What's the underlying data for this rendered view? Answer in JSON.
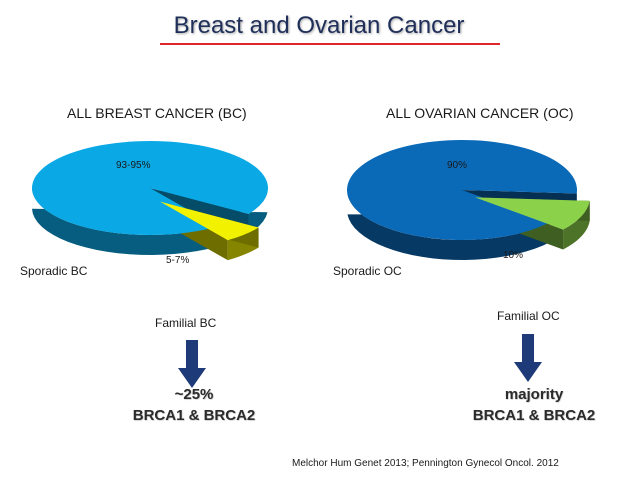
{
  "slide": {
    "title": "Breast and Ovarian Cancer",
    "citation": "Melchor Hum Genet 2013; Pennington Gynecol Oncol. 2012"
  },
  "colors": {
    "title_underline": "#e0262b",
    "bc_sporadic": "#0aa9e6",
    "bc_familial": "#f2f200",
    "oc_sporadic": "#0a6ab8",
    "oc_familial": "#8cd14a",
    "arrow": "#1f3a78"
  },
  "chart_data": [
    {
      "type": "pie",
      "title": "ALL BREAST CANCER (BC)",
      "slices": [
        {
          "name": "Sporadic BC",
          "label": "93-95%",
          "value": 94
        },
        {
          "name": "Familial BC",
          "label": "5-7%",
          "value": 6,
          "exploded": true
        }
      ],
      "outcome": {
        "line1": "~25%",
        "line2": "BRCA1 & BRCA2"
      }
    },
    {
      "type": "pie",
      "title": "ALL OVARIAN CANCER (OC)",
      "slices": [
        {
          "name": "Sporadic OC",
          "label": "90%",
          "value": 90
        },
        {
          "name": "Familial OC",
          "label": "10%",
          "value": 10,
          "exploded": true
        }
      ],
      "outcome": {
        "line1": "majority",
        "line2": "BRCA1 & BRCA2"
      }
    }
  ]
}
